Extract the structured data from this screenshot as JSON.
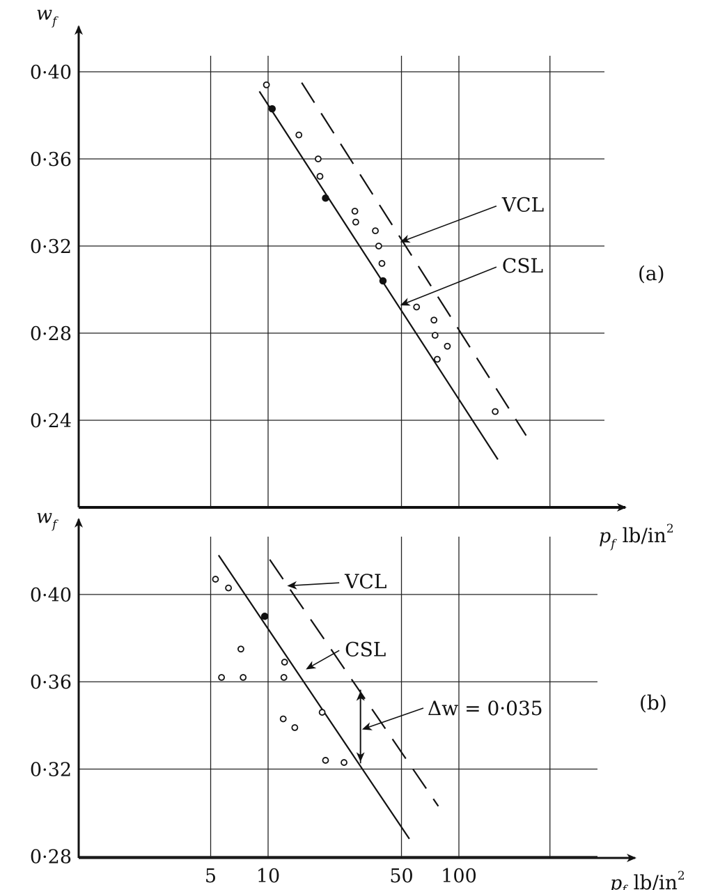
{
  "chart_data": [
    {
      "panel": "(a)",
      "type": "scatter",
      "x_scale": "log",
      "ylabel_main": "w",
      "ylabel_sub": "f",
      "xlabel_main": "p",
      "xlabel_sub": "f",
      "xlabel_unit": "lb/in",
      "xlabel_sup": "2",
      "yticks": [
        0.24,
        0.28,
        0.32,
        0.36,
        0.4
      ],
      "ytick_labels": [
        "0·24",
        "0·28",
        "0·32",
        "0·36",
        "0·40"
      ],
      "ylim": [
        0.2,
        0.41
      ],
      "gridlines_x": [
        5,
        10,
        50,
        100,
        300
      ],
      "series": [
        {
          "name": "CSL",
          "style": "solid",
          "points": [
            [
              9,
              0.391
            ],
            [
              160,
              0.222
            ]
          ]
        },
        {
          "name": "VCL",
          "style": "dashed",
          "points": [
            [
              15,
              0.395
            ],
            [
              225,
              0.233
            ]
          ]
        }
      ],
      "points_open": [
        [
          9.8,
          0.394
        ],
        [
          14.5,
          0.371
        ],
        [
          18.3,
          0.36
        ],
        [
          18.7,
          0.352
        ],
        [
          28.5,
          0.336
        ],
        [
          28.8,
          0.331
        ],
        [
          36.5,
          0.327
        ],
        [
          38,
          0.32
        ],
        [
          39.5,
          0.312
        ],
        [
          60,
          0.292
        ],
        [
          74,
          0.286
        ],
        [
          75,
          0.279
        ],
        [
          87,
          0.274
        ],
        [
          77,
          0.268
        ],
        [
          155,
          0.244
        ]
      ],
      "points_filled": [
        [
          10.5,
          0.383
        ],
        [
          20,
          0.342
        ],
        [
          40,
          0.304
        ]
      ],
      "annotations": [
        {
          "text": "VCL",
          "x": 160,
          "y": 0.339,
          "arrow_to": [
            50,
            0.322
          ]
        },
        {
          "text": "CSL",
          "x": 160,
          "y": 0.311,
          "arrow_to": [
            50,
            0.293
          ]
        }
      ]
    },
    {
      "panel": "(b)",
      "type": "scatter",
      "x_scale": "log",
      "ylabel_main": "w",
      "ylabel_sub": "f",
      "xlabel_main": "p",
      "xlabel_sub": "f",
      "xlabel_unit": "lb/in",
      "xlabel_sup": "2",
      "xticks": [
        5,
        10,
        50,
        100
      ],
      "xtick_labels": [
        "5",
        "10",
        "50",
        "100"
      ],
      "yticks": [
        0.28,
        0.32,
        0.36,
        0.4
      ],
      "ytick_labels": [
        "0·28",
        "0·32",
        "0·36",
        "0·40"
      ],
      "ylim": [
        0.28,
        0.42
      ],
      "gridlines_x": [
        5,
        10,
        50,
        100,
        300
      ],
      "series": [
        {
          "name": "CSL",
          "style": "solid",
          "points": [
            [
              5.5,
              0.418
            ],
            [
              55,
              0.288
            ]
          ]
        },
        {
          "name": "VCL",
          "style": "dashed",
          "points": [
            [
              10.2,
              0.416
            ],
            [
              78,
              0.303
            ]
          ]
        }
      ],
      "points_open": [
        [
          5.3,
          0.407
        ],
        [
          6.2,
          0.403
        ],
        [
          5.7,
          0.362
        ],
        [
          7.2,
          0.375
        ],
        [
          7.4,
          0.362
        ],
        [
          12.2,
          0.369
        ],
        [
          12.1,
          0.362
        ],
        [
          12,
          0.343
        ],
        [
          13.8,
          0.339
        ],
        [
          19.2,
          0.346
        ],
        [
          20,
          0.324
        ],
        [
          25,
          0.323
        ]
      ],
      "points_filled": [
        [
          9.6,
          0.39
        ]
      ],
      "delta": {
        "text": "Δw = 0·035",
        "x": 30.5,
        "y_top": 0.357,
        "y_bottom": 0.322
      },
      "annotations": [
        {
          "text": "VCL",
          "x": 24,
          "y": 0.406,
          "arrow_to": [
            12.8,
            0.404
          ]
        },
        {
          "text": "CSL",
          "x": 24,
          "y": 0.375,
          "arrow_to": [
            16,
            0.366
          ]
        }
      ]
    }
  ],
  "panel_a_label": "(a)",
  "panel_b_label": "(b)"
}
